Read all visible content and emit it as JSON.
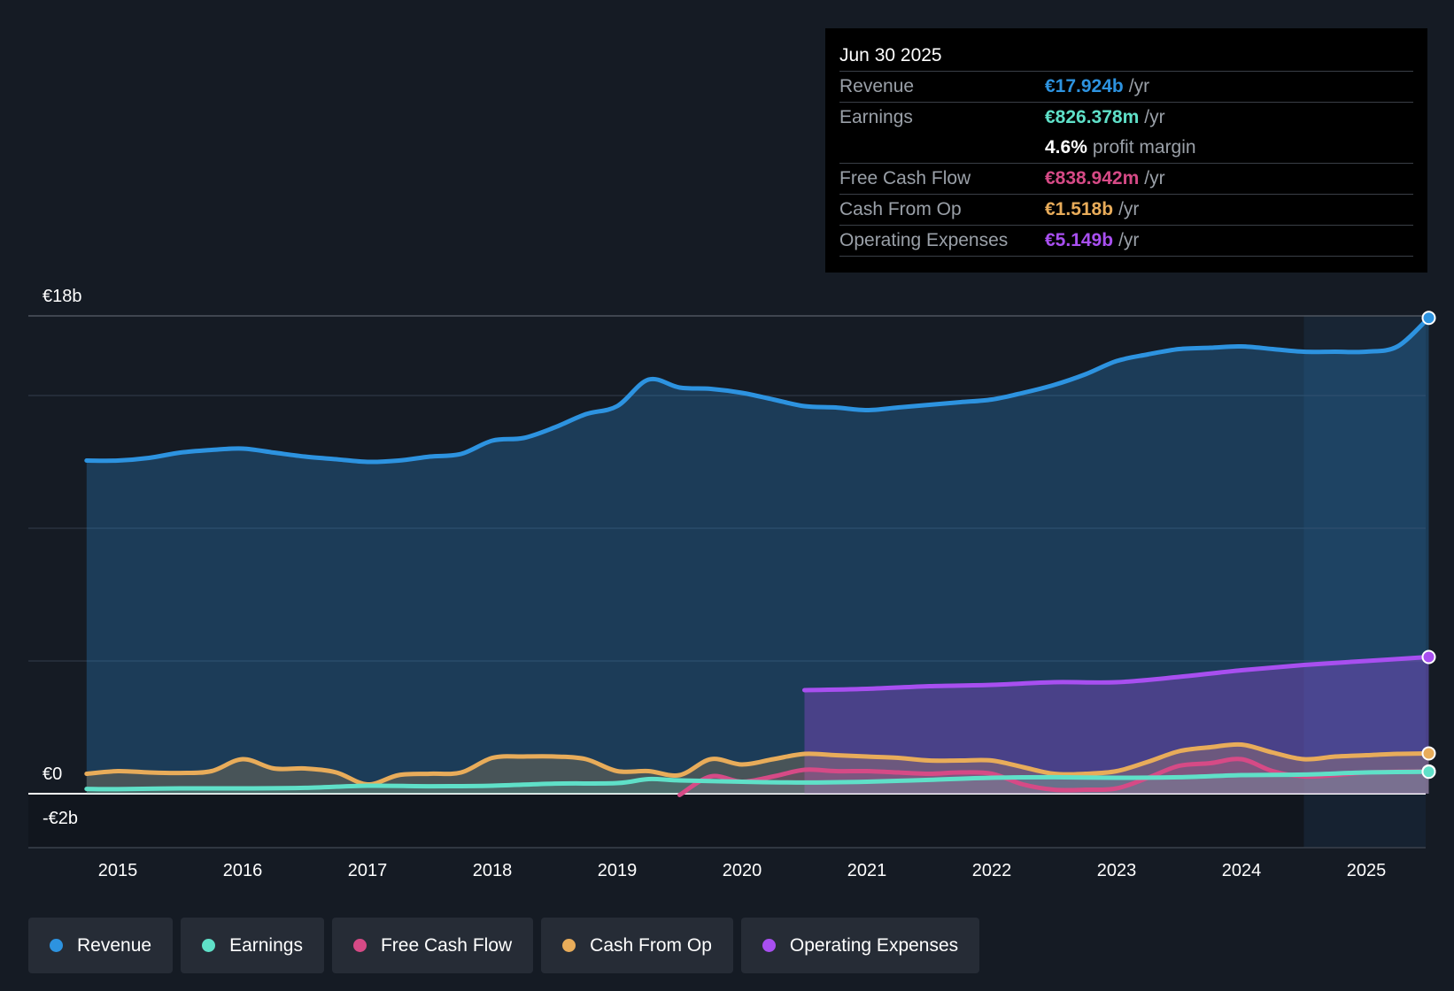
{
  "colors": {
    "revenue": "#2d93e0",
    "earnings": "#5fe0c8",
    "fcf": "#d64a86",
    "cfo": "#e8ac5a",
    "opex": "#a84ff0",
    "background": "#151b24",
    "forecast_shade": "#1c2d42"
  },
  "tooltip": {
    "date": "Jun 30 2025",
    "rows": [
      {
        "label": "Revenue",
        "value": "€17.924b",
        "unit": "/yr",
        "color": "#2d93e0"
      },
      {
        "label": "Earnings",
        "value": "€826.378m",
        "unit": "/yr",
        "color": "#5fe0c8"
      },
      {
        "label": "",
        "value": "4.6%",
        "unit": "profit margin",
        "color": "#ffffff"
      },
      {
        "label": "Free Cash Flow",
        "value": "€838.942m",
        "unit": "/yr",
        "color": "#d64a86"
      },
      {
        "label": "Cash From Op",
        "value": "€1.518b",
        "unit": "/yr",
        "color": "#e8ac5a"
      },
      {
        "label": "Operating Expenses",
        "value": "€5.149b",
        "unit": "/yr",
        "color": "#a84ff0"
      }
    ]
  },
  "legend": [
    {
      "label": "Revenue",
      "color": "#2d93e0"
    },
    {
      "label": "Earnings",
      "color": "#5fe0c8"
    },
    {
      "label": "Free Cash Flow",
      "color": "#d64a86"
    },
    {
      "label": "Cash From Op",
      "color": "#e8ac5a"
    },
    {
      "label": "Operating Expenses",
      "color": "#a84ff0"
    }
  ],
  "chart_data": {
    "type": "area",
    "title": "",
    "xlabel": "",
    "ylabel": "",
    "ylim": [
      -2,
      18
    ],
    "xlim": [
      2014.5,
      2025.5
    ],
    "shaded_region_start": 2024.5,
    "y_tick_labels": [
      {
        "value": 18,
        "label": "€18b"
      },
      {
        "value": 0,
        "label": "€0"
      },
      {
        "value": -2,
        "label": "-€2b"
      }
    ],
    "gridlines": [
      18,
      15,
      10,
      5
    ],
    "x_ticks": [
      2015,
      2016,
      2017,
      2018,
      2019,
      2020,
      2021,
      2022,
      2023,
      2024,
      2025
    ],
    "series": [
      {
        "name": "Revenue",
        "key": "revenue",
        "x": [
          2014.75,
          2015.0,
          2015.25,
          2015.5,
          2015.75,
          2016.0,
          2016.25,
          2016.5,
          2016.75,
          2017.0,
          2017.25,
          2017.5,
          2017.75,
          2018.0,
          2018.25,
          2018.5,
          2018.75,
          2019.0,
          2019.25,
          2019.5,
          2019.75,
          2020.0,
          2020.25,
          2020.5,
          2020.75,
          2021.0,
          2021.25,
          2021.5,
          2021.75,
          2022.0,
          2022.25,
          2022.5,
          2022.75,
          2023.0,
          2023.25,
          2023.5,
          2023.75,
          2024.0,
          2024.25,
          2024.5,
          2024.75,
          2025.0,
          2025.25,
          2025.5
        ],
        "values": [
          12.55,
          12.55,
          12.65,
          12.85,
          12.95,
          13.0,
          12.85,
          12.7,
          12.6,
          12.5,
          12.55,
          12.7,
          12.8,
          13.3,
          13.4,
          13.8,
          14.3,
          14.6,
          15.6,
          15.3,
          15.25,
          15.1,
          14.85,
          14.6,
          14.55,
          14.45,
          14.55,
          14.65,
          14.75,
          14.85,
          15.1,
          15.4,
          15.8,
          16.3,
          16.55,
          16.75,
          16.8,
          16.85,
          16.75,
          16.65,
          16.65,
          16.65,
          16.85,
          17.924
        ]
      },
      {
        "name": "Operating Expenses",
        "key": "opex",
        "x": [
          2020.5,
          2021.0,
          2021.5,
          2022.0,
          2022.5,
          2023.0,
          2023.5,
          2024.0,
          2024.5,
          2025.0,
          2025.5
        ],
        "values": [
          3.9,
          3.95,
          4.05,
          4.1,
          4.2,
          4.2,
          4.4,
          4.65,
          4.85,
          5.0,
          5.149
        ]
      },
      {
        "name": "Cash From Op",
        "key": "cfo",
        "x": [
          2014.75,
          2015.0,
          2015.25,
          2015.5,
          2015.75,
          2016.0,
          2016.25,
          2016.5,
          2016.75,
          2017.0,
          2017.25,
          2017.5,
          2017.75,
          2018.0,
          2018.25,
          2018.5,
          2018.75,
          2019.0,
          2019.25,
          2019.5,
          2019.75,
          2020.0,
          2020.25,
          2020.5,
          2020.75,
          2021.0,
          2021.25,
          2021.5,
          2021.75,
          2022.0,
          2022.25,
          2022.5,
          2022.75,
          2023.0,
          2023.25,
          2023.5,
          2023.75,
          2024.0,
          2024.25,
          2024.5,
          2024.75,
          2025.0,
          2025.25,
          2025.5
        ],
        "values": [
          0.75,
          0.85,
          0.8,
          0.78,
          0.85,
          1.3,
          0.95,
          0.95,
          0.8,
          0.35,
          0.7,
          0.75,
          0.8,
          1.35,
          1.4,
          1.4,
          1.3,
          0.85,
          0.85,
          0.7,
          1.3,
          1.1,
          1.3,
          1.5,
          1.45,
          1.4,
          1.35,
          1.25,
          1.25,
          1.25,
          1.0,
          0.75,
          0.75,
          0.85,
          1.2,
          1.6,
          1.75,
          1.85,
          1.55,
          1.3,
          1.4,
          1.45,
          1.5,
          1.518
        ]
      },
      {
        "name": "Free Cash Flow",
        "key": "fcf",
        "x": [
          2019.5,
          2019.75,
          2020.0,
          2020.25,
          2020.5,
          2020.75,
          2021.0,
          2021.25,
          2021.5,
          2021.75,
          2022.0,
          2022.25,
          2022.5,
          2022.75,
          2023.0,
          2023.25,
          2023.5,
          2023.75,
          2024.0,
          2024.25,
          2024.5,
          2024.75,
          2025.0,
          2025.25,
          2025.5
        ],
        "values": [
          -0.05,
          0.65,
          0.45,
          0.65,
          0.9,
          0.85,
          0.85,
          0.8,
          0.75,
          0.8,
          0.75,
          0.35,
          0.15,
          0.15,
          0.2,
          0.6,
          1.05,
          1.15,
          1.3,
          0.85,
          0.65,
          0.7,
          0.8,
          0.83,
          0.838942
        ]
      },
      {
        "name": "Earnings",
        "key": "earnings",
        "x": [
          2014.75,
          2015.0,
          2015.5,
          2016.0,
          2016.5,
          2017.0,
          2017.5,
          2018.0,
          2018.5,
          2019.0,
          2019.25,
          2019.5,
          2020.0,
          2020.5,
          2021.0,
          2021.5,
          2022.0,
          2022.5,
          2023.0,
          2023.5,
          2024.0,
          2024.5,
          2025.0,
          2025.5
        ],
        "values": [
          0.18,
          0.17,
          0.2,
          0.2,
          0.22,
          0.3,
          0.28,
          0.3,
          0.38,
          0.4,
          0.55,
          0.5,
          0.45,
          0.42,
          0.45,
          0.52,
          0.6,
          0.62,
          0.6,
          0.62,
          0.7,
          0.72,
          0.8,
          0.826378
        ]
      }
    ]
  }
}
